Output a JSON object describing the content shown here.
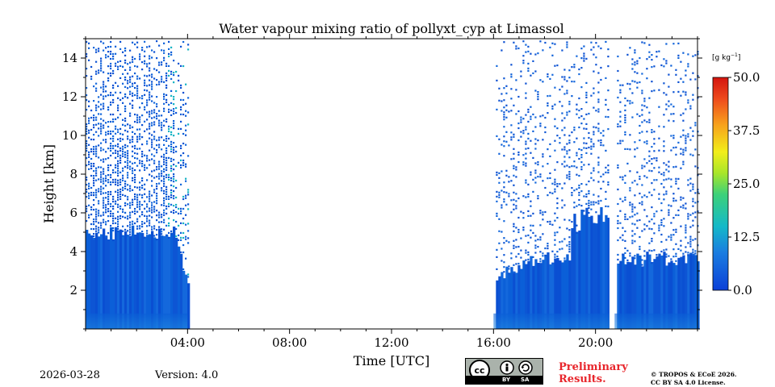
{
  "chart_data": {
    "type": "heatmap",
    "title": "Water vapour mixing ratio of pollyxt_cyp at Limassol",
    "xlabel": "Time [UTC]",
    "ylabel": "Height [km]",
    "xlim_hours": [
      0,
      24
    ],
    "ylim_km": [
      0,
      15
    ],
    "x_ticks": [
      {
        "hour": 4,
        "label": "04:00"
      },
      {
        "hour": 8,
        "label": "08:00"
      },
      {
        "hour": 12,
        "label": "12:00"
      },
      {
        "hour": 16,
        "label": "16:00"
      },
      {
        "hour": 20,
        "label": "20:00"
      }
    ],
    "y_ticks": [
      {
        "km": 2,
        "label": "2"
      },
      {
        "km": 4,
        "label": "4"
      },
      {
        "km": 6,
        "label": "6"
      },
      {
        "km": 8,
        "label": "8"
      },
      {
        "km": 10,
        "label": "10"
      },
      {
        "km": 12,
        "label": "12"
      },
      {
        "km": 14,
        "label": "14"
      }
    ],
    "colorbar": {
      "unit": "[g kg",
      "unit_exp": "−1",
      "unit_close": "]",
      "range": [
        0,
        50
      ],
      "ticks": [
        "0.0",
        "12.5",
        "25.0",
        "37.5",
        "50.0"
      ]
    },
    "data_segments": [
      {
        "start_hour": 0.0,
        "end_hour": 4.0,
        "dense_top_km": 5.0,
        "sparse_top_km": 15.0,
        "typical_value": 3.5
      },
      {
        "start_hour": 16.0,
        "end_hour": 24.0,
        "dense_top_km": 3.6,
        "sparse_top_km": 15.0,
        "typical_value": 3.5
      }
    ],
    "gaps_hours": [
      [
        4.0,
        16.0
      ],
      [
        20.55,
        20.75
      ]
    ],
    "grid": false
  },
  "footer": {
    "date": "2026-03-28",
    "version": "Version: 4.0",
    "license_badge": {
      "left": "BY",
      "right": "SA",
      "cc": "cc"
    },
    "preliminary_line1": "Preliminary",
    "preliminary_line2": "Results.",
    "copyright_line1": "© TROPOS & ECoE 2026.",
    "copyright_line2": "CC BY SA 4.0 License."
  },
  "colors": {
    "data_blue": "#0a5ed6",
    "gap_white": "#ffffff",
    "badge_gray": "#aab2ab",
    "preliminary_red": "#e8252b"
  }
}
